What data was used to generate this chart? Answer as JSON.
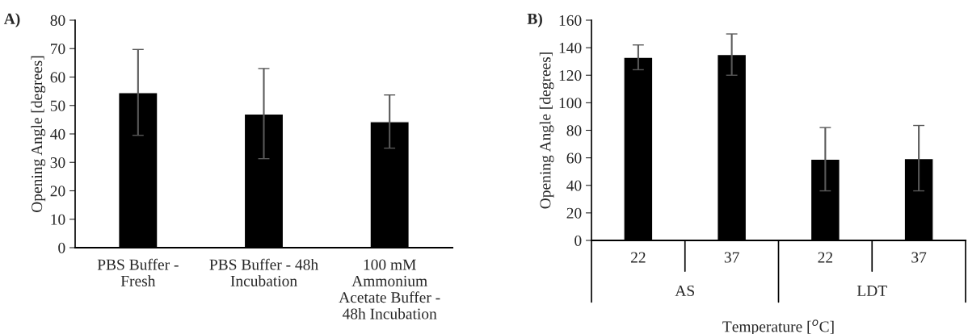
{
  "chart_data": [
    {
      "type": "bar",
      "title": "A)",
      "ylabel": "Opening Angle [degrees]",
      "categories": [
        "PBS Buffer -\nFresh",
        "PBS Buffer - 48h\nIncubation",
        "100 mM\nAmmonium\nAcetate Buffer -\n48h Incubation"
      ],
      "series": [
        {
          "color": "#000000",
          "values": [
            54.5,
            47,
            44.3
          ],
          "errors": [
            [
              39.5,
              69.7
            ],
            [
              31.3,
              63
            ],
            [
              35,
              53.7
            ]
          ]
        }
      ],
      "ylim": [
        0,
        80
      ],
      "yticks": [
        0,
        10,
        20,
        30,
        40,
        50,
        60,
        70,
        80
      ],
      "grid": false,
      "legend": false
    },
    {
      "type": "bar",
      "title": "B)",
      "ylabel": "Opening Angle [degrees]",
      "xlabel": "Temperature [$^{o}$C]",
      "categories": [
        "22",
        "37",
        "22",
        "37"
      ],
      "series": [
        {
          "color": "#000000",
          "values": [
            133,
            135,
            59,
            59.5
          ],
          "errors": [
            [
              124,
              142
            ],
            [
              120,
              150
            ],
            [
              36,
              82
            ],
            [
              36,
              83.5
            ]
          ]
        }
      ],
      "annotations": [
        "AS",
        "LDT"
      ],
      "ylim": [
        0,
        160
      ],
      "yticks": [
        0,
        20,
        40,
        60,
        80,
        100,
        120,
        140,
        160
      ],
      "grid": false,
      "legend": false
    }
  ]
}
